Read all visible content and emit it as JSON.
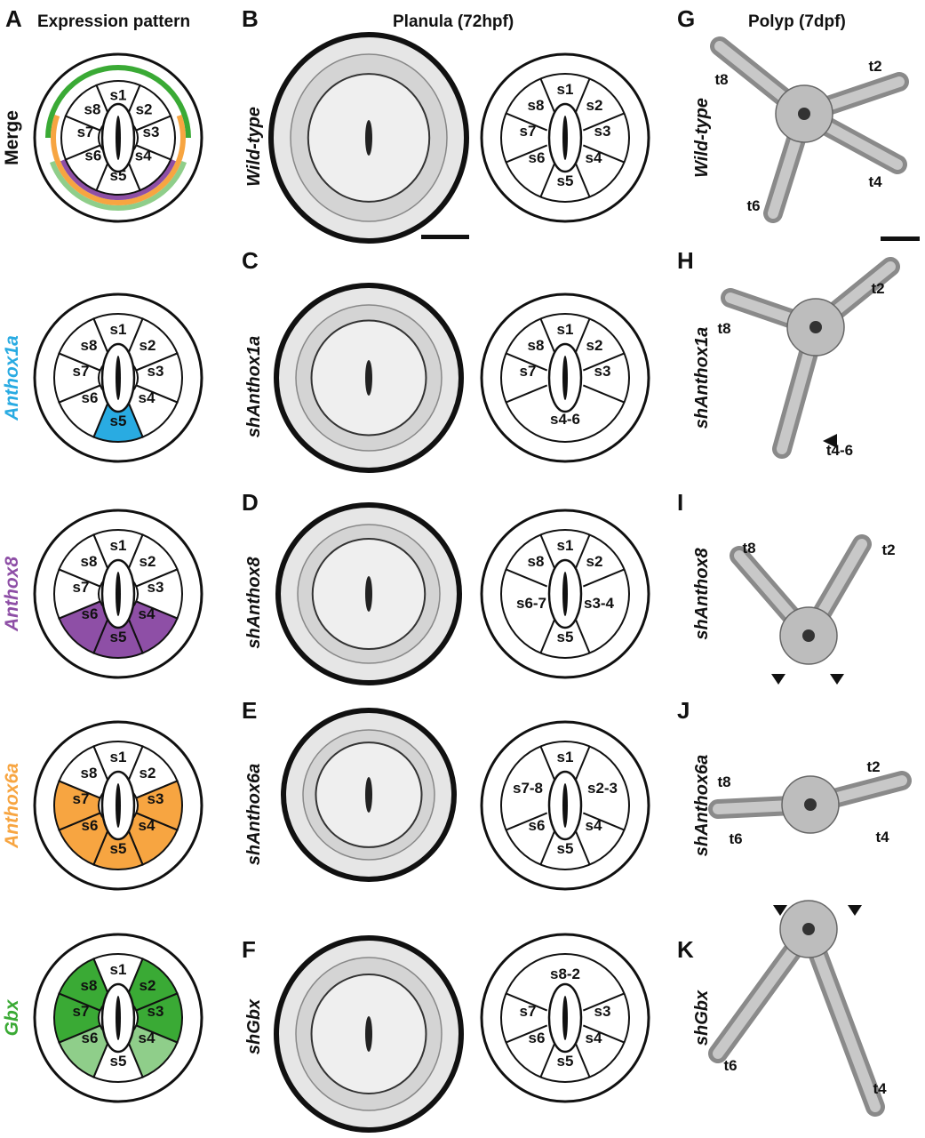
{
  "panel_labels": [
    "A",
    "B",
    "C",
    "D",
    "E",
    "F",
    "G",
    "H",
    "I",
    "J",
    "K"
  ],
  "headers": {
    "expression": "Expression pattern",
    "planula": "Planula (72hpf)",
    "polyp": "Polyp (7dpf)"
  },
  "colors": {
    "anthox1a": "#29abe2",
    "anthox8": "#8e4fa6",
    "anthox6a": "#f7a541",
    "gbx": "#3aaa35",
    "gbx_light": "#8fce8a"
  },
  "rows": [
    {
      "expr_label": "Merge",
      "expr_color": "#111111",
      "expr_segments": [
        "s1",
        "s2",
        "s3",
        "s4",
        "s5",
        "s6",
        "s7",
        "s8"
      ],
      "genotype": "Wild-type",
      "planula_segments": [
        {
          "label": "s1"
        },
        {
          "label": "s2"
        },
        {
          "label": "s3"
        },
        {
          "label": "s4"
        },
        {
          "label": "s5"
        },
        {
          "label": "s6"
        },
        {
          "label": "s7"
        },
        {
          "label": "s8"
        }
      ],
      "polyp_genotype": "Wild-type",
      "tentacles": [
        "t8",
        "t2",
        "t4",
        "t6"
      ]
    },
    {
      "expr_label": "Anthox1a",
      "expr_color": "#29abe2",
      "expr_segments": [
        "s1",
        "s2",
        "s3",
        "s4",
        "s5",
        "s6",
        "s7",
        "s8"
      ],
      "genotype": "shAnthox1a",
      "planula_segments": [
        {
          "label": "s1"
        },
        {
          "label": "s2"
        },
        {
          "label": "s3"
        },
        {
          "label": "s4-6"
        },
        {
          "label": "s7"
        },
        {
          "label": "s8"
        }
      ],
      "polyp_genotype": "shAnthox1a",
      "tentacles": [
        "t8",
        "t2",
        "t4-6"
      ]
    },
    {
      "expr_label": "Anthox8",
      "expr_color": "#8e4fa6",
      "expr_segments": [
        "s1",
        "s2",
        "s3",
        "s4",
        "s5",
        "s6",
        "s7",
        "s8"
      ],
      "genotype": "shAnthox8",
      "planula_segments": [
        {
          "label": "s1"
        },
        {
          "label": "s2"
        },
        {
          "label": "s3-4"
        },
        {
          "label": "s5"
        },
        {
          "label": "s6-7"
        },
        {
          "label": "s8"
        }
      ],
      "polyp_genotype": "shAnthox8",
      "tentacles": [
        "t8",
        "t2"
      ]
    },
    {
      "expr_label": "Anthox6a",
      "expr_color": "#f7a541",
      "expr_segments": [
        "s1",
        "s2",
        "s3",
        "s4",
        "s5",
        "s6",
        "s7",
        "s8"
      ],
      "genotype": "shAnthox6a",
      "planula_segments": [
        {
          "label": "s1"
        },
        {
          "label": "s2-3"
        },
        {
          "label": "s4"
        },
        {
          "label": "s5"
        },
        {
          "label": "s6"
        },
        {
          "label": "s7-8"
        }
      ],
      "polyp_genotype": "shAnthox6a",
      "tentacles": [
        "t8",
        "t2",
        "t6",
        "t4"
      ]
    },
    {
      "expr_label": "Gbx",
      "expr_color": "#3aaa35",
      "expr_segments": [
        "s1",
        "s2",
        "s3",
        "s4",
        "s5",
        "s6",
        "s7",
        "s8"
      ],
      "genotype": "shGbx",
      "planula_segments": [
        {
          "label": "s8-2"
        },
        {
          "label": "s3"
        },
        {
          "label": "s4"
        },
        {
          "label": "s5"
        },
        {
          "label": "s6"
        },
        {
          "label": "s7"
        }
      ],
      "polyp_genotype": "shGbx",
      "tentacles": [
        "t6",
        "t4"
      ]
    }
  ]
}
